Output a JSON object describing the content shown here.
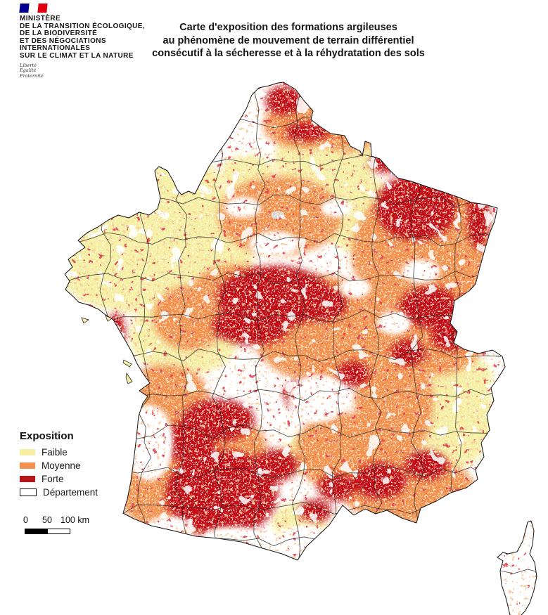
{
  "header": {
    "ministry": {
      "lines": [
        "MINISTÈRE",
        "DE LA TRANSITION ÉCOLOGIQUE,",
        "DE LA BIODIVERSITÉ",
        "ET DES NÉGOCIATIONS",
        "INTERNATIONALES",
        "SUR LE CLIMAT ET LA NATURE"
      ],
      "motto": [
        "Liberté",
        "Égalité",
        "Fraternité"
      ],
      "flag_colors": {
        "blue": "#000091",
        "red": "#e1000f"
      }
    },
    "title_lines": [
      "Carte d'exposition des formations argileuses",
      "au phénomène de mouvement de terrain différentiel",
      "consécutif à la sécheresse et à la réhydratation des sols"
    ]
  },
  "legend": {
    "title": "Exposition",
    "items": [
      {
        "label": "Faible",
        "color": "#f5efa1",
        "type": "fill"
      },
      {
        "label": "Moyenne",
        "color": "#f4914e",
        "type": "fill"
      },
      {
        "label": "Forte",
        "color": "#b5161a",
        "type": "fill"
      },
      {
        "label": "Département",
        "color": "#ffffff",
        "type": "outline"
      }
    ]
  },
  "scalebar": {
    "labels": [
      "0",
      "50",
      "100 km"
    ]
  },
  "map": {
    "exposure_colors": {
      "faible": "#f5efa1",
      "moyenne": "#f4914e",
      "forte": "#c21015"
    },
    "boundary_color": "#1f1f1f",
    "coast_color": "#111111"
  }
}
